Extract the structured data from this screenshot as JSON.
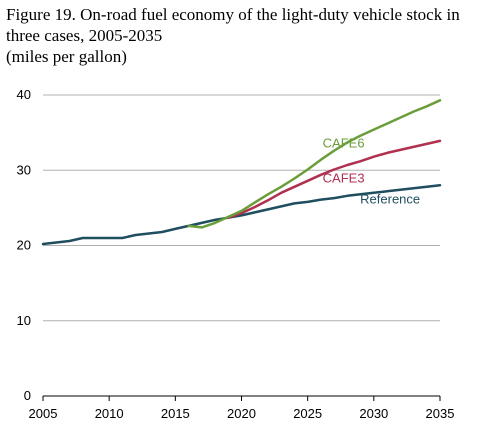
{
  "title_lines": [
    "Figure 19. On-road fuel economy of the light-duty vehicle stock in",
    "three cases, 2005-2035",
    "(miles per gallon)"
  ],
  "chart_data": {
    "type": "line",
    "title": "Figure 19. On-road fuel economy of the light-duty vehicle stock in three cases, 2005-2035",
    "ylabel": "miles per gallon",
    "xlim": [
      2005,
      2035
    ],
    "ylim": [
      0,
      40
    ],
    "x_ticks": [
      2005,
      2010,
      2015,
      2020,
      2025,
      2030,
      2035
    ],
    "y_ticks": [
      0,
      10,
      20,
      30,
      40
    ],
    "grid": "horizontal",
    "x": [
      2005,
      2006,
      2007,
      2008,
      2009,
      2010,
      2011,
      2012,
      2013,
      2014,
      2015,
      2016,
      2017,
      2018,
      2019,
      2020,
      2021,
      2022,
      2023,
      2024,
      2025,
      2026,
      2027,
      2028,
      2029,
      2030,
      2031,
      2032,
      2033,
      2034,
      2035
    ],
    "series": [
      {
        "name": "Reference",
        "color": "#1f4e5f",
        "values": [
          20.2,
          20.4,
          20.6,
          21.0,
          21.0,
          21.0,
          21.0,
          21.4,
          21.6,
          21.8,
          22.2,
          22.6,
          23.0,
          23.4,
          23.7,
          24.0,
          24.4,
          24.8,
          25.2,
          25.6,
          25.8,
          26.1,
          26.3,
          26.6,
          26.8,
          27.0,
          27.2,
          27.4,
          27.6,
          27.8,
          28.0
        ]
      },
      {
        "name": "CAFE3",
        "color": "#b03050",
        "values": [
          null,
          null,
          null,
          null,
          null,
          null,
          null,
          null,
          null,
          null,
          null,
          null,
          null,
          null,
          23.7,
          24.3,
          25.1,
          26.0,
          27.0,
          27.8,
          28.6,
          29.4,
          30.1,
          30.7,
          31.2,
          31.8,
          32.3,
          32.7,
          33.1,
          33.5,
          33.9
        ]
      },
      {
        "name": "CAFE6",
        "color": "#6a9e3a",
        "values": [
          null,
          null,
          null,
          null,
          null,
          null,
          null,
          null,
          null,
          null,
          null,
          22.6,
          22.4,
          23.0,
          23.8,
          24.6,
          25.7,
          26.8,
          27.8,
          28.9,
          30.1,
          31.4,
          32.6,
          33.7,
          34.6,
          35.4,
          36.2,
          37.0,
          37.8,
          38.5,
          39.3
        ]
      }
    ]
  }
}
